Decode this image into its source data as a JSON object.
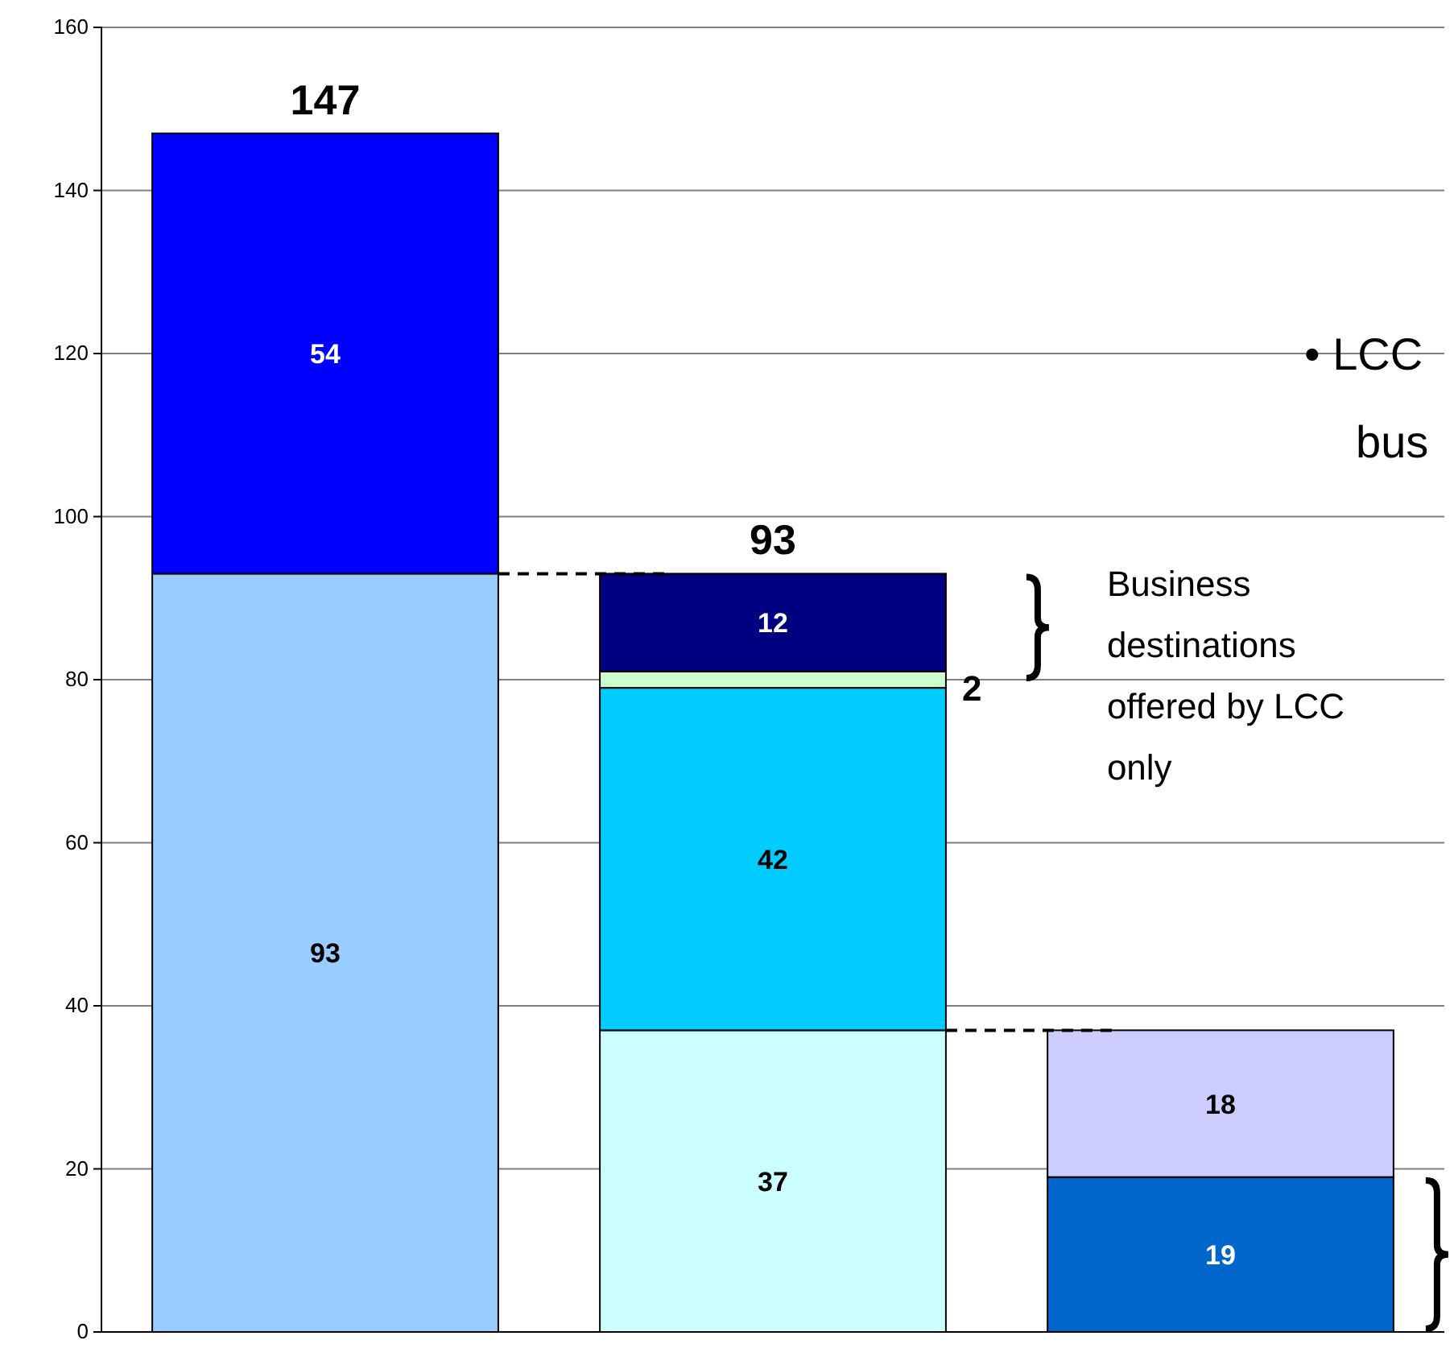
{
  "chart_data": {
    "type": "bar",
    "stacked": true,
    "categories": [
      null,
      null,
      null
    ],
    "series": [
      {
        "colors": [
          "#99ccff",
          "#ccffff",
          "#0066cc"
        ],
        "values": [
          93,
          37,
          19
        ]
      },
      {
        "colors": [
          "#0000ff",
          "#00ccff",
          "#ccccff"
        ],
        "values": [
          54,
          42,
          18
        ]
      },
      {
        "color": "#ccffcc",
        "values": [
          null,
          2,
          null
        ]
      },
      {
        "color": "#000080",
        "values": [
          null,
          12,
          null
        ]
      }
    ],
    "ylim": [
      0,
      160
    ],
    "yticks": [
      0,
      20,
      40,
      60,
      80,
      100,
      120,
      140,
      160
    ],
    "grid": "y",
    "data_labels": true,
    "totals": [
      "147",
      "93",
      null
    ],
    "annotations": [
      "Business destinations offered by LCC only",
      "• LCC",
      "bus"
    ]
  }
}
